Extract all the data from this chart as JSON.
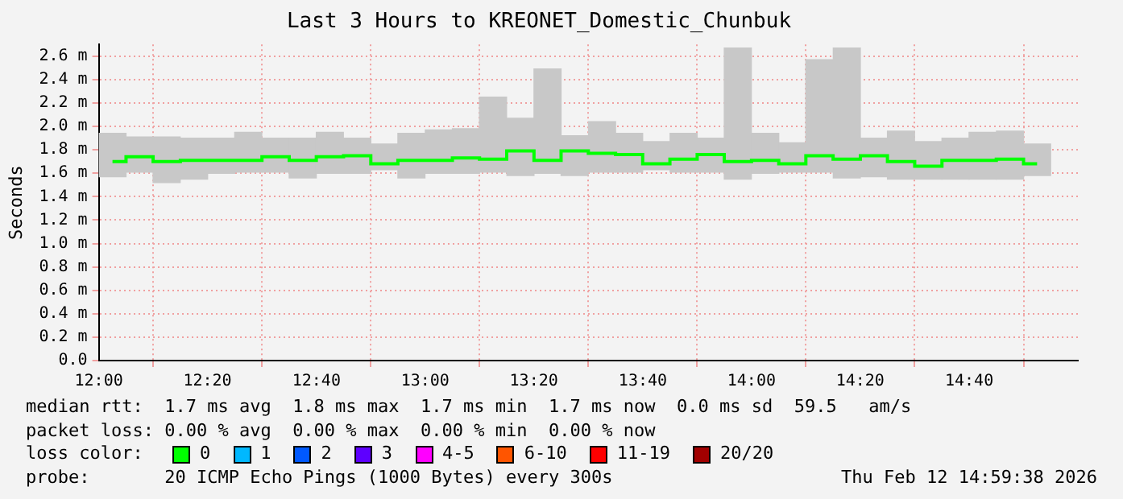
{
  "chart_data": {
    "type": "step",
    "title": "Last 3 Hours to KREONET_Domestic_Chunbuk",
    "ylabel": "Seconds",
    "x": [
      12.042,
      12.125,
      12.208,
      12.292,
      12.375,
      12.458,
      12.542,
      12.625,
      12.708,
      12.792,
      12.875,
      12.958,
      13.042,
      13.125,
      13.208,
      13.292,
      13.375,
      13.458,
      13.542,
      13.625,
      13.708,
      13.792,
      13.875,
      13.958,
      14.042,
      14.125,
      14.208,
      14.292,
      14.375,
      14.458,
      14.542,
      14.625,
      14.708,
      14.792,
      14.875
    ],
    "xlim": [
      12,
      15
    ],
    "xticks": [
      {
        "value": 12,
        "label": "12:00"
      },
      {
        "value": 12.333,
        "label": "12:20"
      },
      {
        "value": 12.667,
        "label": "12:40"
      },
      {
        "value": 13,
        "label": "13:00"
      },
      {
        "value": 13.333,
        "label": "13:20"
      },
      {
        "value": 13.667,
        "label": "13:40"
      },
      {
        "value": 14,
        "label": "14:00"
      },
      {
        "value": 14.333,
        "label": "14:20"
      },
      {
        "value": 14.667,
        "label": "14:40"
      }
    ],
    "ylim": [
      0,
      2.7
    ],
    "yticks": [
      {
        "value": 0,
        "label": "0.0"
      },
      {
        "value": 0.2,
        "label": "0.2 m"
      },
      {
        "value": 0.4,
        "label": "0.4 m"
      },
      {
        "value": 0.6,
        "label": "0.6 m"
      },
      {
        "value": 0.8,
        "label": "0.8 m"
      },
      {
        "value": 1.0,
        "label": "1.0 m"
      },
      {
        "value": 1.2,
        "label": "1.2 m"
      },
      {
        "value": 1.4,
        "label": "1.4 m"
      },
      {
        "value": 1.6,
        "label": "1.6 m"
      },
      {
        "value": 1.8,
        "label": "1.8 m"
      },
      {
        "value": 2.0,
        "label": "2.0 m"
      },
      {
        "value": 2.2,
        "label": "2.2 m"
      },
      {
        "value": 2.4,
        "label": "2.4 m"
      },
      {
        "value": 2.6,
        "label": "2.6 m"
      }
    ],
    "grid": true,
    "legend": "bottom",
    "legend_title": "loss color:",
    "series": [
      {
        "type": "bar",
        "color": "#c8c8c8",
        "base": [
          1.57,
          1.61,
          1.52,
          1.55,
          1.6,
          1.61,
          1.61,
          1.56,
          1.6,
          1.6,
          1.63,
          1.56,
          1.6,
          1.6,
          1.61,
          1.58,
          1.6,
          1.58,
          1.61,
          1.61,
          1.63,
          1.61,
          1.61,
          1.55,
          1.6,
          1.61,
          1.61,
          1.56,
          1.57,
          1.55,
          1.55,
          1.55,
          1.55,
          1.55,
          1.58
        ],
        "values": [
          0.37,
          0.3,
          0.39,
          0.35,
          0.3,
          0.34,
          0.29,
          0.34,
          0.35,
          0.3,
          0.22,
          0.38,
          0.37,
          0.38,
          0.64,
          0.49,
          0.89,
          0.34,
          0.43,
          0.33,
          0.24,
          0.33,
          0.29,
          1.12,
          0.34,
          0.25,
          0.96,
          1.11,
          0.33,
          0.41,
          0.32,
          0.35,
          0.4,
          0.41,
          0.27
        ]
      },
      {
        "name": "0",
        "color": "#00ff00",
        "values": [
          1.7,
          1.74,
          1.7,
          1.71,
          1.71,
          1.71,
          1.74,
          1.71,
          1.74,
          1.75,
          1.68,
          1.71,
          1.71,
          1.73,
          1.72,
          1.79,
          1.71,
          1.79,
          1.77,
          1.76,
          1.68,
          1.72,
          1.76,
          1.7,
          1.71,
          1.68,
          1.75,
          1.72,
          1.75,
          1.7,
          1.66,
          1.71,
          1.71,
          1.72,
          1.68
        ]
      },
      {
        "name": "1",
        "color": "#00b8ff",
        "values": [
          null,
          null,
          null,
          null,
          null,
          null,
          null,
          null,
          null,
          null,
          null,
          null,
          null,
          null,
          null,
          null,
          null,
          null,
          null,
          null,
          null,
          null,
          null,
          null,
          null,
          null,
          null,
          null,
          null,
          null,
          null,
          null,
          null,
          null,
          null
        ]
      },
      {
        "name": "2",
        "color": "#0059ff",
        "values": [
          null,
          null,
          null,
          null,
          null,
          null,
          null,
          null,
          null,
          null,
          null,
          null,
          null,
          null,
          null,
          null,
          null,
          null,
          null,
          null,
          null,
          null,
          null,
          null,
          null,
          null,
          null,
          null,
          null,
          null,
          null,
          null,
          null,
          null,
          null
        ]
      },
      {
        "name": "3",
        "color": "#5e00ff",
        "values": [
          null,
          null,
          null,
          null,
          null,
          null,
          null,
          null,
          null,
          null,
          null,
          null,
          null,
          null,
          null,
          null,
          null,
          null,
          null,
          null,
          null,
          null,
          null,
          null,
          null,
          null,
          null,
          null,
          null,
          null,
          null,
          null,
          null,
          null,
          null
        ]
      },
      {
        "name": "4-5",
        "color": "#ff00ff",
        "values": [
          null,
          null,
          null,
          null,
          null,
          null,
          null,
          null,
          null,
          null,
          null,
          null,
          null,
          null,
          null,
          null,
          null,
          null,
          null,
          null,
          null,
          null,
          null,
          null,
          null,
          null,
          null,
          null,
          null,
          null,
          null,
          null,
          null,
          null,
          null
        ]
      },
      {
        "name": "6-10",
        "color": "#ff5500",
        "values": [
          null,
          null,
          null,
          null,
          null,
          null,
          null,
          null,
          null,
          null,
          null,
          null,
          null,
          null,
          null,
          null,
          null,
          null,
          null,
          null,
          null,
          null,
          null,
          null,
          null,
          null,
          null,
          null,
          null,
          null,
          null,
          null,
          null,
          null,
          null
        ]
      },
      {
        "name": "11-19",
        "color": "#ff0000",
        "values": [
          null,
          null,
          null,
          null,
          null,
          null,
          null,
          null,
          null,
          null,
          null,
          null,
          null,
          null,
          null,
          null,
          null,
          null,
          null,
          null,
          null,
          null,
          null,
          null,
          null,
          null,
          null,
          null,
          null,
          null,
          null,
          null,
          null,
          null,
          null
        ]
      },
      {
        "name": "20/20",
        "color": "#a10000",
        "values": [
          null,
          null,
          null,
          null,
          null,
          null,
          null,
          null,
          null,
          null,
          null,
          null,
          null,
          null,
          null,
          null,
          null,
          null,
          null,
          null,
          null,
          null,
          null,
          null,
          null,
          null,
          null,
          null,
          null,
          null,
          null,
          null,
          null,
          null,
          null
        ]
      }
    ],
    "annotations": [
      "median rtt:  1.7 ms avg  1.8 ms max  1.7 ms min  1.7 ms now  0.0 ms sd  59.5   am/s",
      "packet loss: 0.00 % avg  0.00 % max  0.00 % min  0.00 % now",
      "probe:       20 ICMP Echo Pings (1000 Bytes) every 300s",
      "Thu Feb 12 14:59:38 2026"
    ]
  }
}
